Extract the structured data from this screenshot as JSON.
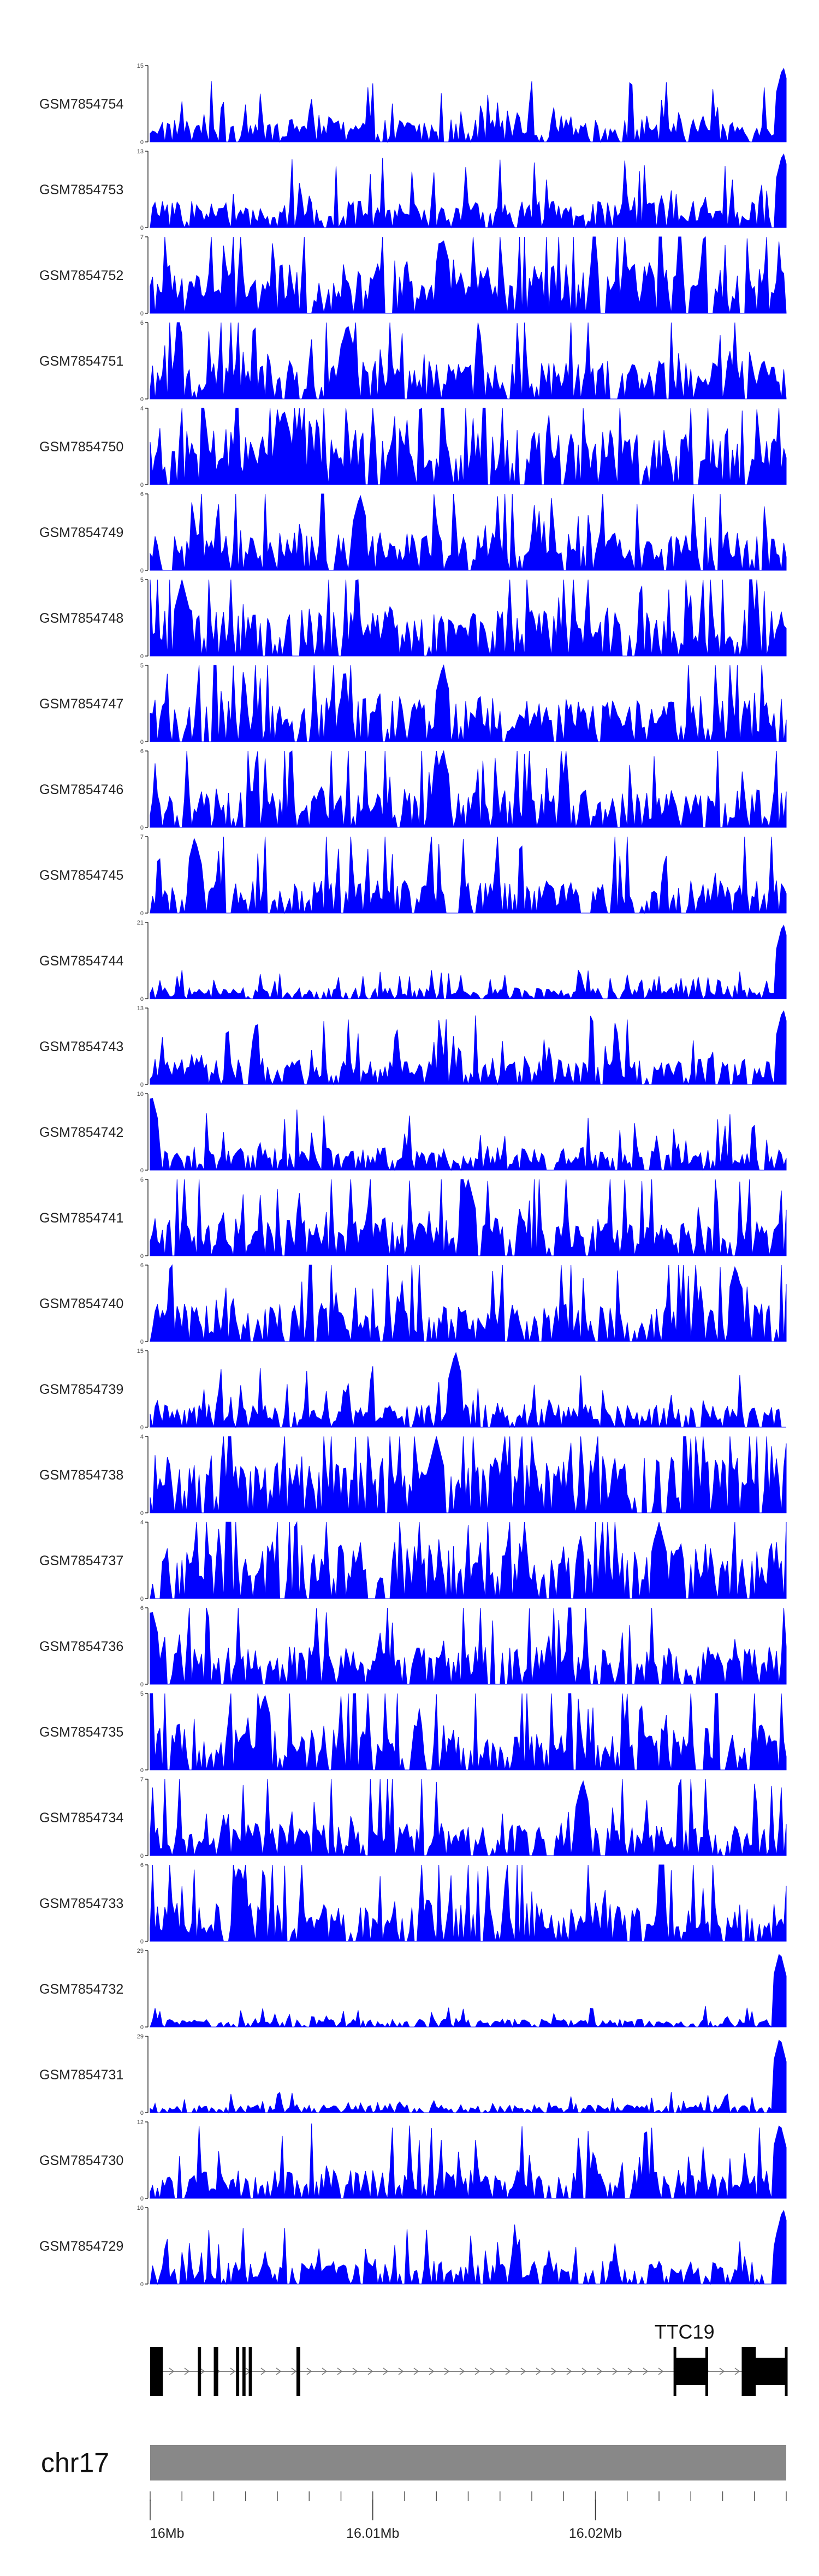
{
  "chart_data": {
    "type": "area",
    "title": "",
    "series_color": "#0000ff",
    "tracks": [
      {
        "name": "GSM7854754",
        "ymax": 15,
        "peak_pos": 0.995,
        "baseline": 3
      },
      {
        "name": "GSM7854753",
        "ymax": 13,
        "peak_pos": 0.995,
        "baseline": 3
      },
      {
        "name": "GSM7854752",
        "ymax": 7,
        "peak_pos": 0.46,
        "baseline": 3
      },
      {
        "name": "GSM7854751",
        "ymax": 6,
        "peak_pos": 0.31,
        "baseline": 2
      },
      {
        "name": "GSM7854750",
        "ymax": 4,
        "peak_pos": 0.21,
        "baseline": 2
      },
      {
        "name": "GSM7854749",
        "ymax": 6,
        "peak_pos": 0.33,
        "baseline": 2
      },
      {
        "name": "GSM7854748",
        "ymax": 5,
        "peak_pos": 0.05,
        "baseline": 2
      },
      {
        "name": "GSM7854747",
        "ymax": 5,
        "peak_pos": 0.46,
        "baseline": 2
      },
      {
        "name": "GSM7854746",
        "ymax": 6,
        "peak_pos": 0.46,
        "baseline": 2
      },
      {
        "name": "GSM7854745",
        "ymax": 7,
        "peak_pos": 0.07,
        "baseline": 2
      },
      {
        "name": "GSM7854744",
        "ymax": 21,
        "peak_pos": 0.995,
        "baseline": 2
      },
      {
        "name": "GSM7854743",
        "ymax": 13,
        "peak_pos": 0.995,
        "baseline": 3
      },
      {
        "name": "GSM7854742",
        "ymax": 10,
        "peak_pos": 0.002,
        "baseline": 2
      },
      {
        "name": "GSM7854741",
        "ymax": 6,
        "peak_pos": 0.5,
        "baseline": 2
      },
      {
        "name": "GSM7854740",
        "ymax": 6,
        "peak_pos": 0.92,
        "baseline": 2
      },
      {
        "name": "GSM7854739",
        "ymax": 15,
        "peak_pos": 0.48,
        "baseline": 3
      },
      {
        "name": "GSM7854738",
        "ymax": 4,
        "peak_pos": 0.45,
        "baseline": 2
      },
      {
        "name": "GSM7854737",
        "ymax": 4,
        "peak_pos": 0.8,
        "baseline": 2
      },
      {
        "name": "GSM7854736",
        "ymax": 6,
        "peak_pos": 0.002,
        "baseline": 2
      },
      {
        "name": "GSM7854735",
        "ymax": 5,
        "peak_pos": 0.18,
        "baseline": 2
      },
      {
        "name": "GSM7854734",
        "ymax": 7,
        "peak_pos": 0.68,
        "baseline": 2
      },
      {
        "name": "GSM7854733",
        "ymax": 6,
        "peak_pos": 0.14,
        "baseline": 2
      },
      {
        "name": "GSM7854732",
        "ymax": 29,
        "peak_pos": 0.99,
        "baseline": 2
      },
      {
        "name": "GSM7854731",
        "ymax": 29,
        "peak_pos": 0.99,
        "baseline": 2
      },
      {
        "name": "GSM7854730",
        "ymax": 12,
        "peak_pos": 0.99,
        "baseline": 3
      },
      {
        "name": "GSM7854729",
        "ymax": 10,
        "peak_pos": 0.995,
        "baseline": 2
      }
    ],
    "y_min_label": "0",
    "gene": {
      "name": "TTC19",
      "exons": [
        [
          0.0,
          0.02
        ],
        [
          0.075,
          0.08
        ],
        [
          0.1,
          0.107
        ],
        [
          0.135,
          0.14
        ],
        [
          0.145,
          0.15
        ],
        [
          0.155,
          0.16
        ],
        [
          0.23,
          0.236
        ],
        [
          0.825,
          0.875
        ],
        [
          0.93,
          0.95
        ],
        [
          0.95,
          1.0
        ]
      ],
      "intron_start": 0.0,
      "intron_end": 1.0
    },
    "chromosome": {
      "name": "chr17",
      "color": "#888888"
    },
    "x_axis": {
      "tick_labels": [
        "16Mb",
        "16.01Mb",
        "16.02Mb"
      ],
      "tick_positions": [
        0.0,
        0.35,
        0.7
      ],
      "minor_ticks": [
        0.0,
        0.05,
        0.1,
        0.15,
        0.2,
        0.25,
        0.3,
        0.35,
        0.4,
        0.45,
        0.5,
        0.55,
        0.6,
        0.65,
        0.7,
        0.75,
        0.8,
        0.85,
        0.9,
        0.95,
        1.0
      ]
    }
  }
}
